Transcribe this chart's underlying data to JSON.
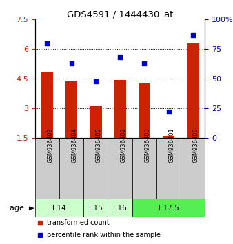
{
  "title": "GDS4591 / 1444430_at",
  "samples": [
    "GSM936403",
    "GSM936404",
    "GSM936405",
    "GSM936402",
    "GSM936400",
    "GSM936401",
    "GSM936406"
  ],
  "bar_values": [
    4.85,
    4.35,
    3.1,
    4.45,
    4.3,
    1.55,
    6.3
  ],
  "scatter_values": [
    80,
    63,
    48,
    68,
    63,
    22,
    87
  ],
  "bar_color": "#cc2200",
  "scatter_color": "#0000cc",
  "ylim_left": [
    1.5,
    7.5
  ],
  "ylim_right": [
    0,
    100
  ],
  "yticks_left": [
    1.5,
    3.0,
    4.5,
    6.0,
    7.5
  ],
  "yticks_right": [
    0,
    25,
    50,
    75,
    100
  ],
  "ytick_labels_left": [
    "1.5",
    "3",
    "4.5",
    "6",
    "7.5"
  ],
  "ytick_labels_right": [
    "0",
    "25",
    "50",
    "75",
    "100%"
  ],
  "hlines": [
    3.0,
    4.5,
    6.0
  ],
  "age_group_indices": [
    {
      "label": "E14",
      "start": 0,
      "end": 1,
      "color": "#ccffcc"
    },
    {
      "label": "E15",
      "start": 2,
      "end": 2,
      "color": "#ccffcc"
    },
    {
      "label": "E16",
      "start": 3,
      "end": 3,
      "color": "#ccffcc"
    },
    {
      "label": "E17.5",
      "start": 4,
      "end": 6,
      "color": "#55ee55"
    }
  ],
  "legend_bar_label": "transformed count",
  "legend_scatter_label": "percentile rank within the sample",
  "age_label": "age",
  "bar_bottom": 1.5,
  "bar_width": 0.5,
  "sample_box_color": "#cccccc",
  "plot_bg": "#ffffff"
}
